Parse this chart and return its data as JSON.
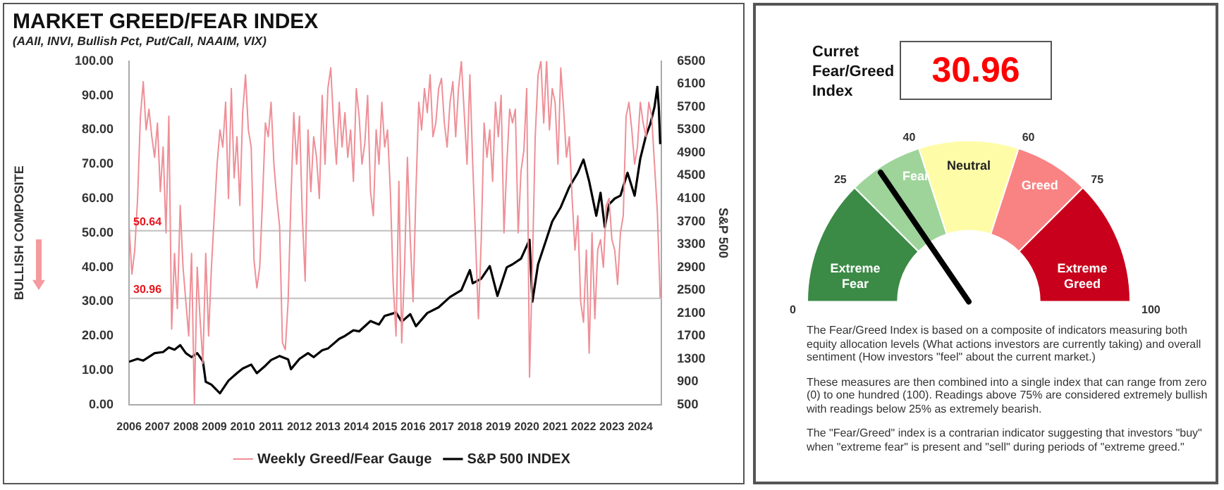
{
  "chart_data": [
    {
      "type": "line",
      "title": "MARKET GREED/FEAR INDEX",
      "subtitle": "(AAII, INVI, Bullish Pct, Put/Call, NAAIM, VIX)",
      "ylabel": "BULLISH COMPOSITE",
      "y2label": "S&P 500",
      "xlim": [
        2006,
        2024.75
      ],
      "xticks": [
        2006,
        2007,
        2008,
        2009,
        2010,
        2011,
        2012,
        2013,
        2014,
        2015,
        2016,
        2017,
        2018,
        2019,
        2020,
        2021,
        2022,
        2023,
        2024
      ],
      "ylim": [
        0,
        100
      ],
      "yticks": [
        {
          "value": 0,
          "label": "0.00"
        },
        {
          "value": 10,
          "label": "10.00"
        },
        {
          "value": 20,
          "label": "20.00"
        },
        {
          "value": 30,
          "label": "30.00"
        },
        {
          "value": 40,
          "label": "40.00"
        },
        {
          "value": 50,
          "label": "50.00"
        },
        {
          "value": 60,
          "label": "60.00"
        },
        {
          "value": 70,
          "label": "70.00"
        },
        {
          "value": 80,
          "label": "80.00"
        },
        {
          "value": 90,
          "label": "90.00"
        },
        {
          "value": 100,
          "label": "100.00"
        }
      ],
      "y2lim": [
        500,
        6500
      ],
      "y2ticks": [
        500,
        900,
        1300,
        1700,
        2100,
        2500,
        2900,
        3300,
        3700,
        4100,
        4500,
        4900,
        5300,
        5700,
        6100,
        6500
      ],
      "grid": false,
      "legend": "bottom",
      "ref_lines": [
        {
          "axis": "y",
          "value": 50.64,
          "label": "50.64",
          "color": "#c0c0c0"
        },
        {
          "axis": "y",
          "value": 30.96,
          "label": "30.96",
          "color": "#c0c0c0"
        }
      ],
      "series": [
        {
          "name": "Weekly Greed/Fear Gauge",
          "color": "#ef8f97",
          "x": [
            2006,
            2006.1,
            2006.2,
            2006.3,
            2006.4,
            2006.5,
            2006.6,
            2006.7,
            2006.8,
            2006.9,
            2007,
            2007.1,
            2007.2,
            2007.3,
            2007.4,
            2007.5,
            2007.6,
            2007.7,
            2007.8,
            2007.9,
            2008,
            2008.1,
            2008.2,
            2008.3,
            2008.4,
            2008.5,
            2008.6,
            2008.7,
            2008.8,
            2008.9,
            2009,
            2009.1,
            2009.2,
            2009.3,
            2009.4,
            2009.5,
            2009.6,
            2009.7,
            2009.8,
            2009.9,
            2010,
            2010.1,
            2010.2,
            2010.3,
            2010.4,
            2010.5,
            2010.6,
            2010.7,
            2010.8,
            2010.9,
            2011,
            2011.1,
            2011.2,
            2011.3,
            2011.4,
            2011.5,
            2011.6,
            2011.7,
            2011.8,
            2011.9,
            2012,
            2012.1,
            2012.2,
            2012.3,
            2012.4,
            2012.5,
            2012.6,
            2012.7,
            2012.8,
            2012.9,
            2013,
            2013.1,
            2013.2,
            2013.3,
            2013.4,
            2013.5,
            2013.6,
            2013.7,
            2013.8,
            2013.9,
            2014,
            2014.1,
            2014.2,
            2014.3,
            2014.4,
            2014.5,
            2014.6,
            2014.7,
            2014.8,
            2014.9,
            2015,
            2015.1,
            2015.2,
            2015.3,
            2015.4,
            2015.5,
            2015.6,
            2015.7,
            2015.8,
            2015.9,
            2016,
            2016.1,
            2016.2,
            2016.3,
            2016.4,
            2016.5,
            2016.6,
            2016.7,
            2016.8,
            2016.9,
            2017,
            2017.1,
            2017.2,
            2017.3,
            2017.4,
            2017.5,
            2017.6,
            2017.7,
            2017.8,
            2017.9,
            2018,
            2018.1,
            2018.2,
            2018.3,
            2018.4,
            2018.5,
            2018.6,
            2018.7,
            2018.8,
            2018.9,
            2019,
            2019.1,
            2019.2,
            2019.3,
            2019.4,
            2019.5,
            2019.6,
            2019.7,
            2019.8,
            2019.9,
            2020,
            2020.1,
            2020.2,
            2020.3,
            2020.4,
            2020.5,
            2020.6,
            2020.7,
            2020.8,
            2020.9,
            2021,
            2021.1,
            2021.2,
            2021.3,
            2021.4,
            2021.5,
            2021.6,
            2021.7,
            2021.8,
            2021.9,
            2022,
            2022.1,
            2022.2,
            2022.3,
            2022.4,
            2022.5,
            2022.6,
            2022.7,
            2022.8,
            2022.9,
            2023,
            2023.1,
            2023.2,
            2023.3,
            2023.4,
            2023.5,
            2023.6,
            2023.7,
            2023.8,
            2023.9,
            2024,
            2024.1,
            2024.2,
            2024.3,
            2024.4,
            2024.5,
            2024.6,
            2024.7
          ],
          "values": [
            52,
            38,
            45,
            60,
            84,
            94,
            80,
            86,
            78,
            72,
            82,
            62,
            75,
            50,
            84,
            22,
            44,
            28,
            58,
            40,
            30,
            20,
            44,
            0,
            40,
            25,
            12,
            44,
            20,
            40,
            55,
            70,
            80,
            75,
            88,
            60,
            92,
            66,
            78,
            58,
            85,
            96,
            80,
            75,
            42,
            34,
            40,
            60,
            82,
            78,
            88,
            70,
            60,
            52,
            18,
            16,
            30,
            60,
            85,
            70,
            84,
            55,
            36,
            80,
            62,
            78,
            72,
            60,
            90,
            70,
            92,
            98,
            82,
            70,
            88,
            75,
            85,
            72,
            80,
            65,
            92,
            84,
            70,
            76,
            90,
            62,
            55,
            80,
            70,
            88,
            75,
            80,
            62,
            35,
            20,
            65,
            18,
            40,
            72,
            48,
            30,
            62,
            88,
            80,
            92,
            85,
            96,
            78,
            82,
            92,
            95,
            82,
            75,
            88,
            94,
            78,
            92,
            100,
            85,
            70,
            96,
            70,
            48,
            25,
            48,
            82,
            72,
            80,
            65,
            88,
            78,
            90,
            50,
            70,
            86,
            82,
            86,
            50,
            68,
            74,
            92,
            8,
            40,
            78,
            96,
            100,
            82,
            100,
            80,
            92,
            88,
            70,
            98,
            86,
            72,
            78,
            60,
            45,
            55,
            30,
            24,
            45,
            15,
            50,
            25,
            45,
            48,
            40,
            58,
            60,
            48,
            45,
            35,
            50,
            55,
            84,
            88,
            80,
            70,
            75,
            88,
            82,
            78,
            88,
            84,
            70,
            56,
            31
          ]
        },
        {
          "name": "S&P 500 INDEX",
          "color": "#000000",
          "axis": "y2",
          "x": [
            2006,
            2006.3,
            2006.5,
            2006.9,
            2007.2,
            2007.4,
            2007.6,
            2007.8,
            2008,
            2008.2,
            2008.4,
            2008.6,
            2008.7,
            2008.9,
            2009.2,
            2009.5,
            2009.8,
            2010,
            2010.3,
            2010.5,
            2010.8,
            2011,
            2011.3,
            2011.6,
            2011.7,
            2012,
            2012.3,
            2012.5,
            2012.8,
            2013,
            2013.4,
            2013.6,
            2013.9,
            2014.1,
            2014.5,
            2014.8,
            2015,
            2015.4,
            2015.6,
            2015.9,
            2016.1,
            2016.5,
            2016.9,
            2017.3,
            2017.7,
            2018,
            2018.1,
            2018.4,
            2018.7,
            2018.97,
            2019.3,
            2019.5,
            2019.8,
            2020.1,
            2020.2,
            2020.4,
            2020.7,
            2020.9,
            2021.2,
            2021.5,
            2021.8,
            2022,
            2022.2,
            2022.45,
            2022.6,
            2022.75,
            2022.9,
            2023.1,
            2023.3,
            2023.55,
            2023.8,
            2024,
            2024.2,
            2024.35,
            2024.5,
            2024.6,
            2024.65,
            2024.7
          ],
          "values": [
            1250,
            1300,
            1270,
            1400,
            1420,
            1500,
            1460,
            1540,
            1400,
            1330,
            1400,
            1260,
            900,
            850,
            700,
            920,
            1050,
            1130,
            1200,
            1050,
            1180,
            1280,
            1350,
            1290,
            1120,
            1300,
            1400,
            1330,
            1450,
            1480,
            1650,
            1700,
            1800,
            1780,
            1960,
            1900,
            2050,
            2110,
            1950,
            2080,
            1870,
            2100,
            2200,
            2380,
            2500,
            2850,
            2620,
            2700,
            2920,
            2400,
            2900,
            2950,
            3050,
            3380,
            2300,
            2950,
            3400,
            3700,
            3950,
            4300,
            4550,
            4780,
            4400,
            3800,
            4200,
            3600,
            4000,
            4100,
            4150,
            4550,
            4150,
            4800,
            5200,
            5400,
            5700,
            6050,
            5700,
            5050
          ]
        }
      ]
    },
    {
      "type": "donut",
      "title": "Curret Fear/Greed Index",
      "categories": [
        "Extreme Fear",
        "Fear",
        "Neutral",
        "Greed",
        "Extreme Greed"
      ],
      "values": [
        25,
        15,
        20,
        15,
        25
      ],
      "colors": [
        "#3b8a46",
        "#9ed49a",
        "#fffca8",
        "#f98383",
        "#c8001c"
      ],
      "needle": "Fear",
      "annotations": [
        "30.96",
        "The Fear/Greed Index is based on a composite of indicators measuring both equity allocation levels (What actions investors are currently taking) and overall sentiment (How investors \"feel\" about the current market.)",
        "These measures are then combined into a single index that can range from zero (0) to one hundred (100). Readings above 75% are considered extremely bullish with readings below 25% as extremely bearish.",
        "The \"Fear/Greed\" index is a contrarian indicator suggesting that investors \"buy\" when \"extreme fear\" is present and \"sell\" during periods of \"extreme greed.\"",
        "0",
        "25",
        "40",
        "60",
        "75",
        "100"
      ]
    }
  ]
}
